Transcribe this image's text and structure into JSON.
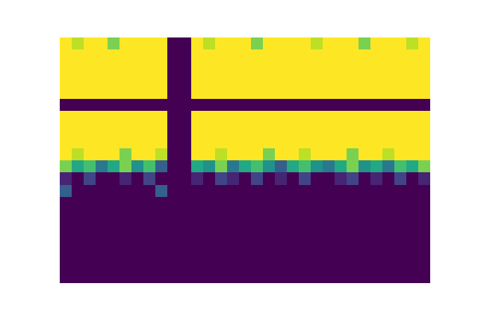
{
  "chart_data": {
    "type": "heatmap",
    "tick_labels": false,
    "zlim": [
      0,
      1
    ],
    "cells": [
      [
        1,
        0.9,
        1,
        1,
        0.8,
        1,
        1,
        1,
        1,
        0,
        0,
        1,
        0.9,
        1,
        1,
        1,
        0.8,
        1,
        1,
        1,
        1,
        0.9,
        1,
        1,
        1,
        0.8,
        1,
        1,
        1,
        0.9,
        1
      ],
      [
        1,
        1,
        1,
        1,
        1,
        1,
        1,
        1,
        1,
        0,
        0,
        1,
        1,
        1,
        1,
        1,
        1,
        1,
        1,
        1,
        1,
        1,
        1,
        1,
        1,
        1,
        1,
        1,
        1,
        1,
        1
      ],
      [
        1,
        1,
        1,
        1,
        1,
        1,
        1,
        1,
        1,
        0,
        0,
        1,
        1,
        1,
        1,
        1,
        1,
        1,
        1,
        1,
        1,
        1,
        1,
        1,
        1,
        1,
        1,
        1,
        1,
        1,
        1
      ],
      [
        1,
        1,
        1,
        1,
        1,
        1,
        1,
        1,
        1,
        0,
        0,
        1,
        1,
        1,
        1,
        1,
        1,
        1,
        1,
        1,
        1,
        1,
        1,
        1,
        1,
        1,
        1,
        1,
        1,
        1,
        1
      ],
      [
        1,
        1,
        1,
        1,
        1,
        1,
        1,
        1,
        1,
        0,
        0,
        1,
        1,
        1,
        1,
        1,
        1,
        1,
        1,
        1,
        1,
        1,
        1,
        1,
        1,
        1,
        1,
        1,
        1,
        1,
        1
      ],
      [
        0,
        0,
        0,
        0,
        0,
        0,
        0,
        0,
        0,
        0,
        0,
        0,
        0,
        0,
        0,
        0,
        0,
        0,
        0,
        0,
        0,
        0,
        0,
        0,
        0,
        0,
        0,
        0,
        0,
        0,
        0
      ],
      [
        1,
        1,
        1,
        1,
        1,
        1,
        1,
        1,
        1,
        0,
        0,
        1,
        1,
        1,
        1,
        1,
        1,
        1,
        1,
        1,
        1,
        1,
        1,
        1,
        1,
        1,
        1,
        1,
        1,
        1,
        1
      ],
      [
        1,
        1,
        1,
        1,
        1,
        1,
        1,
        1,
        1,
        0,
        0,
        1,
        1,
        1,
        1,
        1,
        1,
        1,
        1,
        1,
        1,
        1,
        1,
        1,
        1,
        1,
        1,
        1,
        1,
        1,
        1
      ],
      [
        1,
        1,
        1,
        1,
        1,
        1,
        1,
        1,
        1,
        0,
        0,
        1,
        1,
        1,
        1,
        1,
        1,
        1,
        1,
        1,
        1,
        1,
        1,
        1,
        1,
        1,
        1,
        1,
        1,
        1,
        1
      ],
      [
        1,
        0.9,
        1,
        1,
        1,
        0.8,
        1,
        1,
        0.9,
        0,
        0,
        1,
        1,
        0.9,
        1,
        1,
        1,
        0.8,
        1,
        1,
        0.9,
        1,
        1,
        1,
        0.8,
        1,
        1,
        0.9,
        1,
        1,
        1
      ],
      [
        0.8,
        0.6,
        0.7,
        0.4,
        0.6,
        0.8,
        0.5,
        0.7,
        0.3,
        0,
        0,
        0.6,
        0.5,
        0.8,
        0.4,
        0.6,
        0.7,
        0.5,
        0.3,
        0.6,
        0.7,
        0.5,
        0.4,
        0.6,
        0.8,
        0.5,
        0.6,
        0.4,
        0.7,
        0.6,
        0.8
      ],
      [
        0.1,
        0,
        0.2,
        0,
        0,
        0.1,
        0,
        0.2,
        0,
        0,
        0,
        0.1,
        0,
        0.2,
        0.1,
        0,
        0.2,
        0,
        0.1,
        0,
        0.2,
        0,
        0,
        0.1,
        0.2,
        0,
        0.1,
        0,
        0.2,
        0,
        0.1
      ],
      [
        0.3,
        0,
        0,
        0,
        0,
        0,
        0,
        0,
        0.3,
        0,
        0,
        0,
        0,
        0,
        0,
        0,
        0,
        0,
        0,
        0,
        0,
        0,
        0,
        0,
        0,
        0,
        0,
        0,
        0,
        0,
        0
      ],
      [
        0,
        0,
        0,
        0,
        0,
        0,
        0,
        0,
        0,
        0,
        0,
        0,
        0,
        0,
        0,
        0,
        0,
        0,
        0,
        0,
        0,
        0,
        0,
        0,
        0,
        0,
        0,
        0,
        0,
        0,
        0
      ],
      [
        0,
        0,
        0,
        0,
        0,
        0,
        0,
        0,
        0,
        0,
        0,
        0,
        0,
        0,
        0,
        0,
        0,
        0,
        0,
        0,
        0,
        0,
        0,
        0,
        0,
        0,
        0,
        0,
        0,
        0,
        0
      ],
      [
        0,
        0,
        0,
        0,
        0,
        0,
        0,
        0,
        0,
        0,
        0,
        0,
        0,
        0,
        0,
        0,
        0,
        0,
        0,
        0,
        0,
        0,
        0,
        0,
        0,
        0,
        0,
        0,
        0,
        0,
        0
      ],
      [
        0,
        0,
        0,
        0,
        0,
        0,
        0,
        0,
        0,
        0,
        0,
        0,
        0,
        0,
        0,
        0,
        0,
        0,
        0,
        0,
        0,
        0,
        0,
        0,
        0,
        0,
        0,
        0,
        0,
        0,
        0
      ],
      [
        0,
        0,
        0,
        0,
        0,
        0,
        0,
        0,
        0,
        0,
        0,
        0,
        0,
        0,
        0,
        0,
        0,
        0,
        0,
        0,
        0,
        0,
        0,
        0,
        0,
        0,
        0,
        0,
        0,
        0,
        0
      ],
      [
        0,
        0,
        0,
        0,
        0,
        0,
        0,
        0,
        0,
        0,
        0,
        0,
        0,
        0,
        0,
        0,
        0,
        0,
        0,
        0,
        0,
        0,
        0,
        0,
        0,
        0,
        0,
        0,
        0,
        0,
        0
      ],
      [
        0,
        0,
        0,
        0,
        0,
        0,
        0,
        0,
        0,
        0,
        0,
        0,
        0,
        0,
        0,
        0,
        0,
        0,
        0,
        0,
        0,
        0,
        0,
        0,
        0,
        0,
        0,
        0,
        0,
        0,
        0
      ]
    ]
  }
}
